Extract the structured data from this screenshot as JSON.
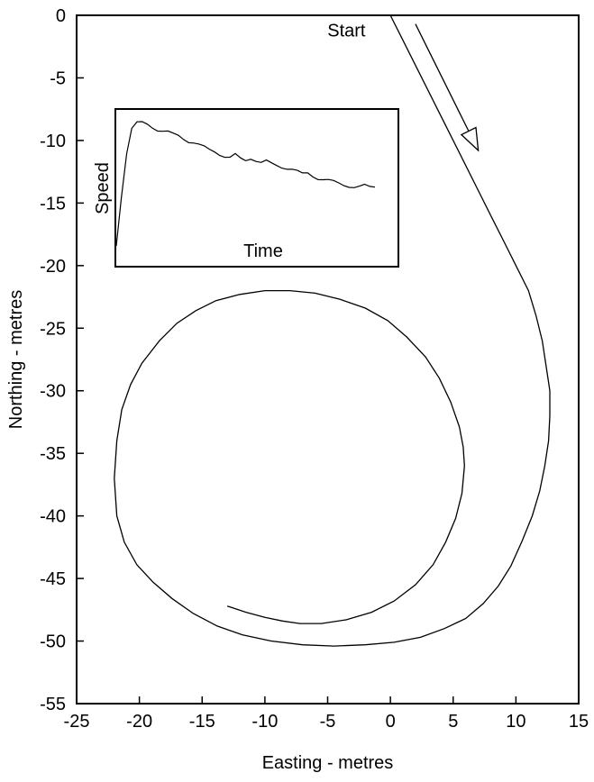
{
  "chart_data": [
    {
      "type": "line",
      "title": "",
      "xlabel": "Easting - metres",
      "ylabel": "Northing - metres",
      "xlim": [
        -25,
        15
      ],
      "ylim": [
        -55,
        0
      ],
      "x_ticks": [
        -25,
        -20,
        -15,
        -10,
        -5,
        0,
        5,
        10,
        15
      ],
      "y_ticks": [
        0,
        -5,
        -10,
        -15,
        -20,
        -25,
        -30,
        -35,
        -40,
        -45,
        -50,
        -55
      ],
      "grid": false,
      "annotations": [
        {
          "text": "Start",
          "x": -3.5,
          "y": -1.7
        }
      ],
      "direction_arrow": {
        "from": [
          2,
          -0.7
        ],
        "to": [
          7,
          -10.8
        ]
      },
      "series": [
        {
          "line_color": "#000000",
          "x": [
            0,
            1,
            2,
            3,
            4,
            5,
            6,
            7,
            8,
            9,
            10,
            11,
            11.6,
            12.1,
            12.4,
            12.7,
            12.7,
            12.6,
            12.3,
            11.9,
            11.3,
            10.5,
            9.6,
            8.6,
            7.4,
            6.0,
            4.3,
            2.4,
            0.3,
            -2.0,
            -4.5,
            -7.0,
            -9.5,
            -11.8,
            -13.8,
            -15.7,
            -17.4,
            -18.9,
            -20.2,
            -21.2,
            -21.8,
            -22.0,
            -21.8,
            -21.4,
            -20.7,
            -19.8,
            -18.4,
            -17.0,
            -15.5,
            -13.9,
            -12.0,
            -10.0,
            -8.0,
            -6.0,
            -4.0,
            -2.0,
            -0.2,
            1.3,
            2.8,
            3.9,
            4.8,
            5.5,
            5.8,
            5.9,
            5.7,
            5.2,
            4.4,
            3.4,
            2.0,
            0.3,
            -1.5,
            -3.5,
            -5.5,
            -7.2,
            -8.6,
            -10.0,
            -11.5,
            -13.0
          ],
          "y": [
            0,
            -2,
            -4,
            -6,
            -8,
            -10,
            -12,
            -14,
            -16,
            -18,
            -20,
            -22,
            -24,
            -26,
            -28,
            -30,
            -32,
            -34,
            -36,
            -38,
            -40,
            -42,
            -44,
            -45.6,
            -47.0,
            -48.2,
            -49.0,
            -49.7,
            -50.1,
            -50.3,
            -50.4,
            -50.3,
            -50.0,
            -49.5,
            -48.8,
            -47.8,
            -46.6,
            -45.3,
            -43.9,
            -42.1,
            -40.0,
            -37.0,
            -34.0,
            -31.5,
            -29.5,
            -27.8,
            -26.0,
            -24.6,
            -23.6,
            -22.8,
            -22.3,
            -22.0,
            -22.0,
            -22.2,
            -22.7,
            -23.4,
            -24.4,
            -25.7,
            -27.3,
            -29.0,
            -30.9,
            -32.9,
            -34.5,
            -36.0,
            -38.2,
            -40.2,
            -42.1,
            -43.9,
            -45.5,
            -46.8,
            -47.7,
            -48.3,
            -48.6,
            -48.6,
            -48.4,
            -48.1,
            -47.7,
            -47.2
          ]
        }
      ]
    },
    {
      "type": "line",
      "title": "",
      "xlabel": "Time",
      "ylabel": "Speed",
      "x_ticks": [],
      "y_ticks": [],
      "grid": false,
      "series": [
        {
          "line_color": "#000000",
          "x": [
            0,
            2,
            4,
            6,
            8,
            10,
            12,
            14,
            16,
            18,
            20,
            22,
            24,
            26,
            28,
            30,
            32,
            34,
            36,
            38,
            40,
            42,
            44,
            46,
            48,
            50,
            52,
            54,
            56,
            58,
            60,
            62,
            64,
            66,
            68,
            70,
            72,
            74,
            76,
            78,
            80,
            82,
            84,
            86,
            88,
            90,
            92,
            94,
            96,
            98,
            100
          ],
          "y": [
            0.0,
            0.38,
            0.72,
            0.92,
            0.96,
            0.96,
            0.95,
            0.93,
            0.91,
            0.9,
            0.89,
            0.87,
            0.86,
            0.84,
            0.82,
            0.81,
            0.79,
            0.77,
            0.75,
            0.74,
            0.72,
            0.7,
            0.69,
            0.71,
            0.68,
            0.67,
            0.69,
            0.67,
            0.65,
            0.66,
            0.64,
            0.63,
            0.62,
            0.61,
            0.6,
            0.58,
            0.56,
            0.57,
            0.55,
            0.53,
            0.52,
            0.51,
            0.5,
            0.49,
            0.48,
            0.47,
            0.46,
            0.46,
            0.47,
            0.46,
            0.46
          ]
        }
      ]
    }
  ]
}
